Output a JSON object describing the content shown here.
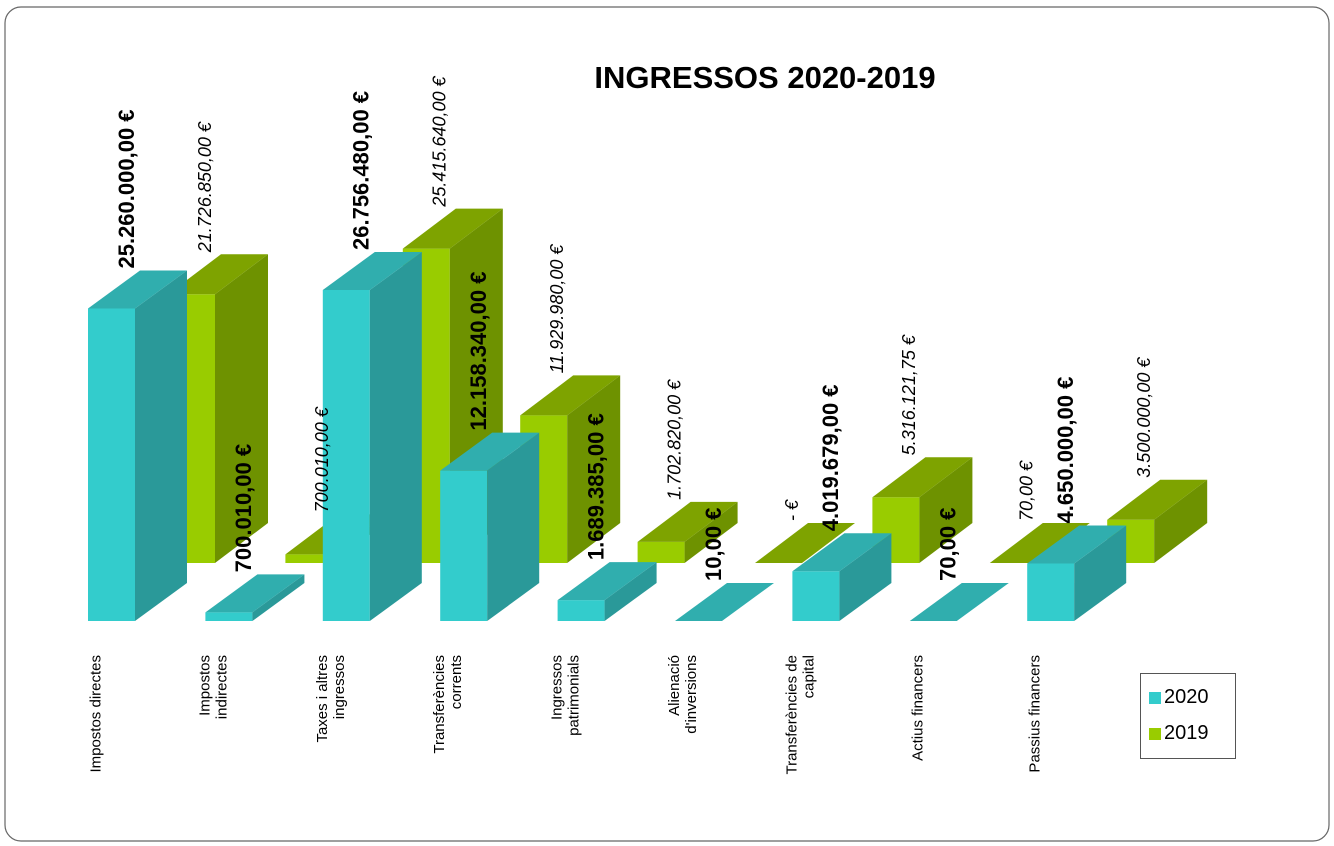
{
  "chart_data": {
    "type": "bar3d",
    "title": "INGRESSOS 2020-2019",
    "categories": [
      "Impostos directes",
      "Impostos\nindirectes",
      "Taxes i altres\ningressos",
      "Transferències\ncorrents",
      "Ingressos\npatrimonials",
      "Alienació\nd'inversions",
      "Transferències de\ncapital",
      "Actius financers",
      "Passius financers"
    ],
    "series": [
      {
        "name": "2020",
        "color": "#33cccc",
        "values": [
          25260000,
          700010,
          26756480,
          12158340,
          1689385,
          10,
          4019679,
          70,
          4650000
        ],
        "value_labels": [
          "25.260.000,00 €",
          "700.010,00 €",
          "26.756.480,00 €",
          "12.158.340,00 €",
          "1.689.385,00 €",
          "10,00 €",
          "4.019.679,00 €",
          "70,00 €",
          "4.650.000,00 €"
        ]
      },
      {
        "name": "2019",
        "color": "#99cc00",
        "values": [
          21726850,
          700010,
          25415640,
          11929980,
          1702820,
          0,
          5316121.75,
          70,
          3500000
        ],
        "value_labels": [
          "21.726.850,00 €",
          "700.010,00 €",
          "25.415.640,00 €",
          "11.929.980,00 €",
          "1.702.820,00 €",
          "-   €",
          "5.316.121,75 €",
          "70,00 €",
          "3.500.000,00 €"
        ]
      }
    ],
    "legend": "right"
  }
}
